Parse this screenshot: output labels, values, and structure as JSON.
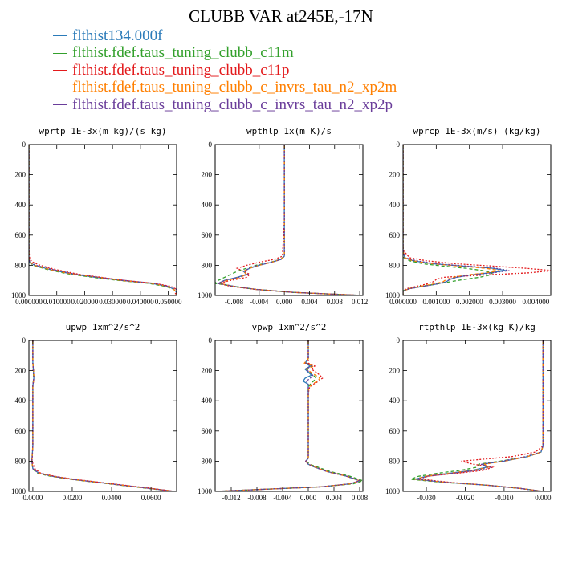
{
  "title": "CLUBB VAR at245E,-17N",
  "series": [
    {
      "name": "flthist134.000f",
      "color": "#2b7bb9",
      "dash": ""
    },
    {
      "name": "flthist.fdef.taus_tuning_clubb_c11m",
      "color": "#33a02c",
      "dash": "4,3"
    },
    {
      "name": "flthist.fdef.taus_tuning_clubb_c11p",
      "color": "#e31a1c",
      "dash": "2,2"
    },
    {
      "name": "flthist.fdef.taus_tuning_clubb_c_invrs_tau_n2_xp2m",
      "color": "#ff7f00",
      "dash": "4,3"
    },
    {
      "name": "flthist.fdef.taus_tuning_clubb_c_invrs_tau_n2_xp2p",
      "color": "#6a3d9a",
      "dash": "2,2"
    }
  ],
  "chart_data": [
    {
      "type": "line",
      "title": "wprtp  1E-3x(m kg)/(s kg)",
      "xlim": [
        0.0,
        0.053
      ],
      "ylim": [
        0,
        1000
      ],
      "xticks": [
        "0.000000",
        "0.010000",
        "0.020000",
        "0.030000",
        "0.040000",
        "0.050000"
      ],
      "xtick_values": [
        0.0,
        0.01,
        0.02,
        0.03,
        0.04,
        0.05
      ],
      "yticks": [
        "0",
        "200",
        "400",
        "600",
        "800",
        "1000"
      ],
      "ytick_values": [
        0,
        200,
        400,
        600,
        800,
        1000
      ],
      "y": [
        0,
        500,
        700,
        760,
        780,
        800,
        830,
        860,
        880,
        900,
        920,
        940,
        960,
        980,
        1000
      ],
      "series": [
        {
          "values": [
            0.0,
            0.0,
            0.0,
            0.0,
            0.0003,
            0.002,
            0.008,
            0.016,
            0.024,
            0.033,
            0.044,
            0.05,
            0.052,
            0.053,
            0.053
          ]
        },
        {
          "values": [
            0.0,
            0.0,
            0.0,
            0.0,
            0.0002,
            0.0015,
            0.007,
            0.015,
            0.023,
            0.032,
            0.043,
            0.049,
            0.052,
            0.053,
            0.053
          ]
        },
        {
          "values": [
            0.0,
            0.0,
            0.0,
            0.0003,
            0.0015,
            0.004,
            0.01,
            0.018,
            0.026,
            0.034,
            0.045,
            0.051,
            0.053,
            0.053,
            0.052
          ]
        },
        {
          "values": [
            0.0,
            0.0,
            0.0,
            0.0,
            0.0003,
            0.002,
            0.008,
            0.016,
            0.025,
            0.033,
            0.044,
            0.05,
            0.052,
            0.053,
            0.053
          ]
        },
        {
          "values": [
            0.0,
            0.0,
            0.0,
            0.0,
            0.0004,
            0.0025,
            0.009,
            0.017,
            0.025,
            0.034,
            0.045,
            0.05,
            0.053,
            0.053,
            0.053
          ]
        }
      ]
    },
    {
      "type": "line",
      "title": "wpthlp  1x(m K)/s",
      "xlim": [
        -0.011,
        0.0125
      ],
      "ylim": [
        0,
        1000
      ],
      "xticks": [
        "-0.008",
        "-0.004",
        "0.000",
        "0.004",
        "0.008",
        "0.012"
      ],
      "xtick_values": [
        -0.008,
        -0.004,
        0.0,
        0.004,
        0.008,
        0.012
      ],
      "yticks": [
        "0",
        "200",
        "400",
        "600",
        "800",
        "1000"
      ],
      "ytick_values": [
        0,
        200,
        400,
        600,
        800,
        1000
      ],
      "y": [
        0,
        500,
        740,
        760,
        780,
        800,
        820,
        840,
        860,
        880,
        900,
        920,
        940,
        960,
        980,
        1000
      ],
      "series": [
        {
          "values": [
            0.0,
            0.0,
            0.0,
            -0.0005,
            -0.002,
            -0.004,
            -0.0055,
            -0.0065,
            -0.006,
            -0.0075,
            -0.0095,
            -0.0105,
            -0.008,
            -0.0045,
            0.0015,
            0.0125
          ]
        },
        {
          "values": [
            0.0,
            0.0,
            0.0,
            -0.0006,
            -0.0022,
            -0.0045,
            -0.006,
            -0.0075,
            -0.0085,
            -0.0095,
            -0.0105,
            -0.011,
            -0.008,
            -0.0045,
            0.0015,
            0.0125
          ]
        },
        {
          "values": [
            0.0,
            0.0,
            -0.0003,
            -0.0015,
            -0.004,
            -0.006,
            -0.0075,
            -0.0065,
            -0.0055,
            -0.006,
            -0.0085,
            -0.0105,
            -0.0085,
            -0.0045,
            0.0015,
            0.0125
          ]
        },
        {
          "values": [
            0.0,
            0.0,
            0.0,
            -0.0005,
            -0.002,
            -0.004,
            -0.0055,
            -0.0065,
            -0.006,
            -0.007,
            -0.0092,
            -0.0103,
            -0.008,
            -0.0045,
            0.0015,
            0.0125
          ]
        },
        {
          "values": [
            0.0,
            0.0,
            0.0,
            -0.0005,
            -0.0021,
            -0.0042,
            -0.0057,
            -0.0062,
            -0.0058,
            -0.0073,
            -0.0095,
            -0.0105,
            -0.008,
            -0.0045,
            0.0015,
            0.0125
          ]
        }
      ]
    },
    {
      "type": "line",
      "title": "wprcp  1E-3x(m/s) (kg/kg)",
      "xlim": [
        0.0,
        0.00445
      ],
      "ylim": [
        0,
        1000
      ],
      "xticks": [
        "0.000000",
        "0.001000",
        "0.002000",
        "0.003000",
        "0.004000"
      ],
      "xtick_values": [
        0.0,
        0.001,
        0.002,
        0.003,
        0.004
      ],
      "yticks": [
        "0",
        "200",
        "400",
        "600",
        "800",
        "1000"
      ],
      "ytick_values": [
        0,
        200,
        400,
        600,
        800,
        1000
      ],
      "y": [
        0,
        700,
        750,
        770,
        790,
        805,
        820,
        835,
        850,
        865,
        880,
        895,
        910,
        925,
        940,
        955,
        970,
        985,
        1000
      ],
      "series": [
        {
          "values": [
            0.0,
            0.0,
            5e-05,
            0.0003,
            0.0009,
            0.0018,
            0.0027,
            0.0031,
            0.0026,
            0.002,
            0.0016,
            0.0014,
            0.0013,
            0.001,
            0.0006,
            0.0002,
            0.0,
            0.0,
            0.0
          ]
        },
        {
          "values": [
            0.0,
            0.0,
            3e-05,
            0.0002,
            0.0006,
            0.0012,
            0.0019,
            0.0024,
            0.0027,
            0.0026,
            0.0023,
            0.0018,
            0.0014,
            0.001,
            0.0005,
            0.0002,
            0.0,
            0.0,
            0.0
          ]
        },
        {
          "values": [
            0.0,
            0.0,
            0.0002,
            0.0007,
            0.0016,
            0.0027,
            0.0037,
            0.0045,
            0.0038,
            0.0024,
            0.0012,
            0.001,
            0.0009,
            0.0007,
            0.0004,
            0.0001,
            0.0,
            0.0,
            0.0
          ]
        },
        {
          "values": [
            0.0,
            0.0,
            5e-05,
            0.0003,
            0.0009,
            0.0017,
            0.0025,
            0.0029,
            0.0025,
            0.0019,
            0.0015,
            0.0013,
            0.0012,
            0.0009,
            0.0005,
            0.0002,
            0.0,
            0.0,
            0.0
          ]
        },
        {
          "values": [
            0.0,
            0.0,
            6e-05,
            0.0004,
            0.001,
            0.0019,
            0.0028,
            0.0032,
            0.0027,
            0.002,
            0.0016,
            0.0014,
            0.0013,
            0.001,
            0.0006,
            0.0002,
            0.0,
            0.0,
            0.0
          ]
        }
      ]
    },
    {
      "type": "line",
      "title": "upwp  1xm^2/s^2",
      "xlim": [
        -0.002,
        0.073
      ],
      "ylim": [
        0,
        1000
      ],
      "xticks": [
        "0.0000",
        "0.0200",
        "0.0400",
        "0.0600"
      ],
      "xtick_values": [
        0.0,
        0.02,
        0.04,
        0.06
      ],
      "yticks": [
        "0",
        "200",
        "400",
        "600",
        "800",
        "1000"
      ],
      "ytick_values": [
        0,
        200,
        400,
        600,
        800,
        1000
      ],
      "y": [
        0,
        150,
        200,
        250,
        300,
        500,
        700,
        800,
        850,
        880,
        900,
        920,
        940,
        960,
        980,
        1000
      ],
      "series": [
        {
          "values": [
            0.0,
            0.0,
            0.0003,
            0.0005,
            0.0,
            0.0,
            0.0,
            -0.0005,
            0.0,
            0.003,
            0.01,
            0.02,
            0.033,
            0.046,
            0.059,
            0.072
          ]
        },
        {
          "values": [
            0.0,
            0.0,
            0.0003,
            0.0004,
            0.0,
            0.0,
            0.0,
            -0.0006,
            0.0,
            0.002,
            0.009,
            0.019,
            0.032,
            0.045,
            0.058,
            0.071
          ]
        },
        {
          "values": [
            0.0,
            0.0,
            0.0002,
            0.0005,
            0.0,
            0.0,
            0.0,
            -0.0004,
            0.001,
            0.004,
            0.011,
            0.021,
            0.034,
            0.047,
            0.06,
            0.072
          ]
        },
        {
          "values": [
            0.0,
            0.0,
            0.0004,
            0.0006,
            0.0,
            0.0,
            0.0,
            -0.0005,
            0.0,
            0.003,
            0.01,
            0.02,
            0.033,
            0.046,
            0.059,
            0.072
          ]
        },
        {
          "values": [
            0.0,
            0.0,
            0.0003,
            0.0005,
            0.0,
            0.0,
            0.0,
            -0.0005,
            0.0,
            0.003,
            0.01,
            0.02,
            0.033,
            0.046,
            0.059,
            0.072
          ]
        }
      ]
    },
    {
      "type": "line",
      "title": "vpwp  1xm^2/s^2",
      "xlim": [
        -0.0145,
        0.0085
      ],
      "ylim": [
        0,
        1000
      ],
      "xticks": [
        "-0.012",
        "-0.008",
        "-0.004",
        "0.000",
        "0.004",
        "0.008"
      ],
      "xtick_values": [
        -0.012,
        -0.008,
        -0.004,
        0.0,
        0.004,
        0.008
      ],
      "yticks": [
        "0",
        "200",
        "400",
        "600",
        "800",
        "1000"
      ],
      "ytick_values": [
        0,
        200,
        400,
        600,
        800,
        1000
      ],
      "y": [
        0,
        120,
        150,
        170,
        190,
        210,
        230,
        250,
        270,
        290,
        310,
        350,
        500,
        780,
        800,
        820,
        840,
        870,
        900,
        930,
        950,
        970,
        1000
      ],
      "series": [
        {
          "values": [
            0.0,
            0.0,
            -0.0005,
            0.0003,
            -0.0005,
            0.0,
            0.0005,
            -0.0005,
            -0.0008,
            0.0,
            0.0,
            0.0,
            0.0,
            0.0,
            -0.0004,
            0.0,
            0.001,
            0.003,
            0.006,
            0.008,
            0.0065,
            0.002,
            -0.0145
          ]
        },
        {
          "values": [
            0.0,
            0.0,
            -0.0003,
            0.0006,
            -0.0002,
            0.0002,
            0.0008,
            0.0012,
            0.0008,
            0.0003,
            0.0,
            0.0,
            0.0,
            0.0,
            -0.0003,
            0.0002,
            0.0015,
            0.0035,
            0.0065,
            0.0085,
            0.007,
            0.002,
            -0.0145
          ]
        },
        {
          "values": [
            0.0,
            0.0,
            0.0,
            0.001,
            0.0005,
            0.0012,
            0.0018,
            0.0022,
            0.0016,
            0.0008,
            0.0002,
            0.0,
            0.0,
            0.0,
            -0.0004,
            0.0,
            0.0012,
            0.003,
            0.006,
            0.008,
            0.0065,
            0.002,
            -0.0145
          ]
        },
        {
          "values": [
            0.0,
            0.0,
            -0.0006,
            0.0008,
            -0.0003,
            0.0004,
            0.0011,
            0.0018,
            0.0014,
            0.0006,
            0.0001,
            0.0,
            0.0,
            0.0,
            -0.0004,
            0.0,
            0.0011,
            0.003,
            0.006,
            0.008,
            0.0065,
            0.002,
            -0.0145
          ]
        },
        {
          "values": [
            0.0,
            0.0,
            -0.0004,
            0.0005,
            -0.0004,
            0.0002,
            0.0007,
            0.0003,
            -0.0003,
            0.0,
            0.0,
            0.0,
            0.0,
            0.0,
            -0.0004,
            0.0,
            0.001,
            0.003,
            0.006,
            0.008,
            0.0065,
            0.002,
            -0.0145
          ]
        }
      ]
    },
    {
      "type": "line",
      "title": "rtpthlp  1E-3x(kg K)/kg",
      "xlim": [
        -0.036,
        0.002
      ],
      "ylim": [
        0,
        1000
      ],
      "xticks": [
        "-0.030",
        "-0.020",
        "-0.010",
        "0.000"
      ],
      "xtick_values": [
        -0.03,
        -0.02,
        -0.01,
        0.0
      ],
      "yticks": [
        "0",
        "200",
        "400",
        "600",
        "800",
        "1000"
      ],
      "ytick_values": [
        0,
        200,
        400,
        600,
        800,
        1000
      ],
      "y": [
        0,
        500,
        700,
        740,
        770,
        800,
        820,
        840,
        860,
        880,
        900,
        920,
        940,
        960,
        980,
        1000
      ],
      "series": [
        {
          "values": [
            0.0,
            0.0,
            0.0,
            -0.0005,
            -0.004,
            -0.01,
            -0.0155,
            -0.0145,
            -0.018,
            -0.024,
            -0.03,
            -0.033,
            -0.025,
            -0.014,
            -0.006,
            0.0
          ]
        },
        {
          "values": [
            0.0,
            0.0,
            0.0,
            -0.0005,
            -0.004,
            -0.011,
            -0.0165,
            -0.017,
            -0.021,
            -0.027,
            -0.032,
            -0.034,
            -0.026,
            -0.014,
            -0.006,
            0.0
          ]
        },
        {
          "values": [
            0.0,
            0.0,
            0.0,
            -0.002,
            -0.008,
            -0.021,
            -0.018,
            -0.013,
            -0.015,
            -0.022,
            -0.03,
            -0.031,
            -0.024,
            -0.014,
            -0.006,
            0.0
          ]
        },
        {
          "values": [
            0.0,
            0.0,
            0.0,
            -0.0005,
            -0.004,
            -0.01,
            -0.015,
            -0.014,
            -0.0175,
            -0.024,
            -0.03,
            -0.033,
            -0.025,
            -0.014,
            -0.006,
            0.0
          ]
        },
        {
          "values": [
            0.0,
            0.0,
            0.0,
            -0.0006,
            -0.0045,
            -0.0105,
            -0.016,
            -0.0135,
            -0.0165,
            -0.023,
            -0.0295,
            -0.0325,
            -0.025,
            -0.014,
            -0.006,
            0.0
          ]
        }
      ]
    }
  ]
}
